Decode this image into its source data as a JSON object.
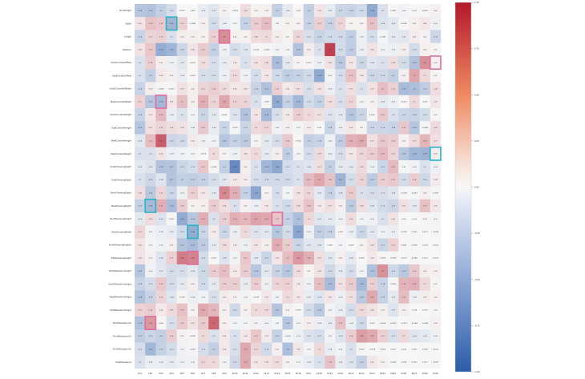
{
  "chart_data": {
    "type": "heatmap",
    "title": "",
    "rows": [
      "ShoeHeight",
      "Width",
      "Length",
      "Rotation",
      "SouthContentOffset",
      "EastContentOffset",
      "SouthContentOffsetX",
      "WestContentOffsetX",
      "SouthContentWeight",
      "EastContentHeight",
      "WestContentHeight",
      "WestContentWeight",
      "SouthShowingDepth",
      "EastShowingDepth",
      "NorthShowingDepth",
      "WestShowingDepth",
      "NorthShowingHeight",
      "WestShowingWidth",
      "SouthShowingDepthX",
      "EastShowingHeight",
      "NorthRetentionHeight",
      "SouthRetentionHeight",
      "WestRetentionHeight",
      "EastRetentionHeight",
      "NorthResistanceX",
      "NorthResistanceY",
      "SouthResistanceX",
      "EastResistance"
    ],
    "columns": [
      "PC1",
      "PC2",
      "PC3",
      "PC4",
      "PC5",
      "PC6",
      "PC7",
      "PC8",
      "PC9",
      "PC10",
      "PC11",
      "PC12",
      "PC13",
      "PC14",
      "PC15",
      "PC16",
      "PC17",
      "PC18",
      "PC19",
      "PC20",
      "PC21",
      "PC22",
      "PC23",
      "PC24",
      "PC25",
      "PC26",
      "PC27",
      "PC28",
      "PC29"
    ],
    "values": [
      [
        -0.26,
        -0.28,
        -0.2,
        -0.12,
        0.0013,
        -0.002,
        -0.044,
        -0.075,
        0.019,
        -0.0003,
        0.085,
        0.012,
        0.018,
        -0.2,
        -0.054,
        0.003,
        -0.2,
        0.051,
        -0.05,
        -0.17,
        -0.18,
        -0.14,
        -0.44,
        -0.1,
        0.0065,
        -0.017,
        -0.007,
        0.0063,
        0.02
      ],
      [
        0.054,
        0.19,
        0.16,
        -0.36,
        0.13,
        -0.0024,
        0.021,
        -0.13,
        -0.039,
        -0.01,
        -0.19,
        0.14,
        0.21,
        -0.01,
        0.018,
        0.016,
        -0.18,
        0.13,
        -0.18,
        0.11,
        0.012,
        0.015,
        0.19,
        -0.084,
        -0.065,
        0.0054,
        0.022,
        0.05,
        -0.03
      ],
      [
        -0.18,
        0.11,
        0.13,
        -0.1,
        0.025,
        0.021,
        0.015,
        0.13,
        0.41,
        0.018,
        0.015,
        0.082,
        0.1,
        0.032,
        0.012,
        0.11,
        -0.11,
        -0.18,
        -0.14,
        -0.14,
        -0.21,
        -0.028,
        -0.12,
        -0.0087,
        -0.061,
        -0.067,
        0.031,
        0.017,
        -0.16
      ],
      [
        0.058,
        0.17,
        -0.42,
        -0.36,
        -0.16,
        0.055,
        0.15,
        -0.19,
        -0.027,
        -0.13,
        -0.08,
        -0.0013,
        -0.0046,
        -0.019,
        -0.013,
        -0.28,
        0.03,
        -0.1,
        0.78,
        -0.13,
        -0.22,
        -0.036,
        0.06,
        -0.022,
        -0.028,
        0.031,
        -0.13,
        0.02,
        0.01
      ],
      [
        -0.1,
        0.14,
        0.023,
        -0.026,
        -0.066,
        0.0029,
        0.076,
        -0.11,
        -0.048,
        0.037,
        -0.1,
        0.062,
        0.083,
        -0.32,
        -0.064,
        0.011,
        0.0072,
        -0.034,
        0.064,
        -0.24,
        0.05,
        -0.16,
        -0.077,
        -0.1,
        0.082,
        -0.13,
        -0.28,
        0.4,
        0.02
      ],
      [
        -0.1,
        -0.2,
        0.04,
        0.019,
        -0.04,
        0.0029,
        -0.11,
        -0.12,
        -0.031,
        0.09,
        -0.026,
        -0.12,
        0.047,
        -0.14,
        -0.21,
        -0.19,
        -0.14,
        -0.44,
        -0.012,
        -0.12,
        0.19,
        0.041,
        -0.16,
        -0.15,
        -0.2,
        0.021,
        0.3,
        0.1,
        0.01
      ],
      [
        -0.18,
        0.025,
        0.0046,
        0.0033,
        0.065,
        0.024,
        0.11,
        0.14,
        0.091,
        0.041,
        0.052,
        -0.18,
        -0.29,
        0.13,
        0.039,
        0.072,
        -0.11,
        0.061,
        -0.034,
        -0.1,
        0.074,
        -0.1,
        0.067,
        0.2,
        0.13,
        -0.33,
        -0.3,
        -0.22,
        0.081
      ],
      [
        0.12,
        -0.26,
        -0.35,
        0.047,
        0.2,
        0.022,
        0.27,
        0.11,
        0.31,
        0.12,
        0.11,
        -0.1,
        -0.009,
        -0.44,
        -0.19,
        -0.35,
        -0.13,
        -0.19,
        0.079,
        -0.11,
        0.11,
        -0.019,
        0.015,
        -0.057,
        -0.029,
        -0.0021,
        0.1,
        -0.003,
        0.05
      ],
      [
        -0.18,
        0.046,
        0.22,
        -0.038,
        -0.097,
        -0.014,
        -0.17,
        -0.064,
        0.00057,
        -0.083,
        -0.28,
        0.055,
        -0.34,
        -0.11,
        0.043,
        0.14,
        0.096,
        0.068,
        -0.087,
        -0.06,
        -0.26,
        -0.17,
        0.0039,
        0.16,
        -0.1,
        -0.17,
        -0.18,
        -0.13,
        0.01
      ],
      [
        -0.26,
        0.072,
        0.11,
        0.077,
        0.062,
        -0.038,
        0.16,
        -0.047,
        -0.17,
        -0.009,
        -0.17,
        0.1,
        0.11,
        -0.022,
        0.027,
        -0.011,
        0.031,
        0.001,
        -0.18,
        -0.034,
        0.047,
        0.012,
        -0.16,
        -0.16,
        -0.18,
        0.16,
        -0.26,
        -0.0085,
        0.09
      ],
      [
        -0.065,
        0.21,
        0.65,
        -0.16,
        -0.14,
        0.039,
        -0.024,
        -0.019,
        -0.26,
        -0.19,
        -0.23,
        0.012,
        -0.06,
        -0.12,
        0.16,
        0.0014,
        -0.2,
        -0.18,
        -0.027,
        -0.21,
        0.26,
        0.29,
        0.066,
        0.16,
        0.14,
        0.016,
        0.086,
        0.24,
        0.07
      ],
      [
        -0.1,
        -0.1,
        0.056,
        -0.031,
        -0.022,
        -0.014,
        0.0015,
        0.096,
        0.012,
        -0.032,
        0.06,
        0.1,
        -0.059,
        0.024,
        -0.21,
        -0.012,
        -0.12,
        0.089,
        -0.039,
        -0.12,
        0.046,
        0.11,
        0.14,
        0.22,
        0.11,
        -0.26,
        -0.36,
        -0.38,
        0.03
      ],
      [
        -0.061,
        -0.086,
        -0.28,
        -0.27,
        -0.17,
        -0.12,
        0.17,
        0.0058,
        -0.2,
        -0.66,
        0.022,
        -0.1,
        -0.36,
        -0.46,
        -0.12,
        -0.098,
        -0.077,
        0.071,
        -0.2,
        -0.061,
        -0.064,
        0.094,
        -0.036,
        -0.17,
        0.22,
        -0.01,
        -0.023,
        -0.098,
        -0.031
      ],
      [
        -0.1,
        -0.16,
        -0.081,
        -0.27,
        -0.2,
        -0.21,
        -0.19,
        -0.12,
        -0.074,
        0.046,
        0.034,
        -0.12,
        -0.14,
        -0.14,
        -0.14,
        -0.1,
        0.22,
        0.3,
        0.18,
        -0.37,
        -0.12,
        0.12,
        -0.23,
        0.14,
        0.16,
        -0.13,
        0.14,
        -0.15,
        0.04
      ],
      [
        0.078,
        -0.24,
        0.11,
        -0.16,
        -0.028,
        0.13,
        0.048,
        -0.06,
        0.44,
        0.26,
        -0.19,
        -0.47,
        0.013,
        -0.12,
        -0.014,
        0.062,
        0.11,
        -0.063,
        -0.18,
        -0.085,
        0.15,
        -0.1,
        -0.12,
        -0.11,
        -0.077,
        -0.0043,
        -0.0061,
        0.024,
        -0.0067
      ],
      [
        -0.19,
        -0.34,
        0.27,
        -0.32,
        0.14,
        0.019,
        0.021,
        0.14,
        0.08,
        -0.1,
        0.016,
        -0.037,
        0.05,
        -0.1,
        -0.14,
        0.082,
        0.18,
        0.039,
        0.072,
        0.023,
        -0.23,
        0.078,
        -0.077,
        -0.13,
        -0.16,
        0.07,
        -0.054,
        0.19,
        0.05
      ],
      [
        -0.061,
        0.087,
        -0.091,
        0.0013,
        -0.43,
        -0.26,
        0.27,
        -0.1,
        0.14,
        0.26,
        0.23,
        0.32,
        0.29,
        0.17,
        -0.19,
        -0.3,
        0.1,
        -0.075,
        -0.061,
        -0.028,
        0.087,
        -0.019,
        -0.024,
        -0.099,
        0.061,
        -0.001,
        -0.001,
        0.009,
        -0.011
      ],
      [
        0.11,
        -0.017,
        -0.036,
        -0.048,
        -0.14,
        -0.42,
        -0.16,
        0.035,
        -0.16,
        -0.04,
        0.1,
        -0.087,
        -0.069,
        -0.26,
        -0.13,
        -0.47,
        -0.03,
        -0.21,
        -0.18,
        0.008,
        -0.039,
        -0.17,
        -0.069,
        -0.025,
        -0.033,
        -0.0055,
        0.0052,
        0.0021,
        0.0044
      ],
      [
        0.056,
        -0.01,
        -0.022,
        0.022,
        -0.27,
        -0.32,
        -0.22,
        -0.053,
        0.078,
        0.035,
        -0.028,
        0.055,
        0.025,
        0.28,
        0.14,
        -0.16,
        -0.067,
        -0.077,
        0.00048,
        -0.015,
        -0.0025,
        0.015,
        0.059,
        -0.17,
        0.12,
        0.0041,
        0.0068,
        -0.0013,
        -0.0013
      ],
      [
        0.057,
        0.014,
        -0.081,
        0.13,
        0.49,
        0.46,
        -0.13,
        0.0021,
        -0.087,
        -0.012,
        0.17,
        -0.063,
        -0.17,
        0.051,
        0.2,
        0.36,
        0.26,
        0.074,
        -0.071,
        0.02,
        -0.062,
        0.0028,
        0.037,
        0.0066,
        -0.0053,
        0.0019,
        -0.0082,
        0.0021,
        -0.0017
      ],
      [
        -0.26,
        -0.021,
        -0.072,
        -0.12,
        -0.11,
        -0.065,
        -0.15,
        0.14,
        0.2,
        0.038,
        0.14,
        -0.25,
        -0.066,
        -0.18,
        -0.25,
        0.082,
        0.01,
        0.055,
        -0.15,
        -0.05,
        -0.12,
        -0.015,
        -0.29,
        0.4,
        -0.15,
        -0.24,
        0.16,
        0.027,
        0.02
      ],
      [
        -0.18,
        -0.12,
        0.16,
        -0.13,
        -0.061,
        0.026,
        -0.14,
        -0.055,
        0.14,
        0.14,
        -0.045,
        0.14,
        -0.03,
        0.11,
        0.13,
        0.039,
        -0.024,
        0.2,
        -0.33,
        0.066,
        0.15,
        -0.34,
        0.13,
        -0.18,
        0.0056,
        0.24,
        0.26,
        0.1,
        0.01
      ],
      [
        -0.28,
        -0.18,
        0.11,
        -0.081,
        0.0087,
        -0.04,
        -0.017,
        -0.11,
        0.034,
        0.018,
        -0.019,
        0.0018,
        0.047,
        -0.02,
        0.098,
        0.048,
        -0.048,
        -0.081,
        0.048,
        -0.029,
        0.071,
        -0.24,
        0.29,
        -0.19,
        -0.055,
        0.21,
        -0.036,
        0.03,
        0.02
      ],
      [
        0.12,
        0.14,
        0.037,
        0.089,
        0.19,
        0.016,
        0.29,
        0.23,
        0.018,
        -0.15,
        0.019,
        0.1,
        0.089,
        -0.27,
        0.013,
        0.00086,
        -0.13,
        -0.24,
        -0.014,
        -0.039,
        -0.13,
        0.09,
        0.062,
        0.021,
        -0.087,
        0.021,
        -0.004,
        0.0003,
        0.01
      ],
      [
        -0.28,
        0.36,
        0.006,
        -0.11,
        0.15,
        0.066,
        0.15,
        0.6,
        0.019,
        -0.014,
        -0.012,
        0.014,
        -0.027,
        -0.011,
        -0.26,
        -0.012,
        0.029,
        -0.035,
        -0.051,
        0.19,
        -0.036,
        -0.15,
        -0.005,
        0.0098,
        -0.0099,
        -0.0014,
        -0.0043,
        -0.0068,
        0.02
      ],
      [
        -0.21,
        -0.16,
        -0.2,
        0.14,
        0.014,
        0.0052,
        0.1,
        -0.1,
        0.041,
        -0.1,
        0.043,
        0.17,
        0.034,
        -0.19,
        -0.0092,
        -0.028,
        -0.094,
        -0.12,
        -0.014,
        -0.087,
        0.14,
        0.34,
        0.29,
        0.13,
        -0.11,
        0.1,
        -0.08,
        -0.06,
        -0.03
      ],
      [
        -0.12,
        -0.35,
        -0.19,
        -0.13,
        -0.021,
        0.0082,
        -0.12,
        -0.2,
        0.042,
        -0.11,
        0.29,
        0.11,
        -0.14,
        0.019,
        -0.3,
        0.045,
        -0.013,
        0.1,
        -0.041,
        -0.019,
        -0.1,
        0.0091,
        -0.0018,
        0.0052,
        0.0022,
        0.0021,
        0.0011,
        0.0043,
        0.0022
      ],
      [
        -0.1,
        -0.038,
        -0.039,
        -0.053,
        -0.026,
        -0.022,
        0.11,
        0.1,
        -0.019,
        -0.15,
        0.29,
        0.049,
        0.062,
        0.088,
        0.016,
        -0.018,
        -0.043,
        -0.1,
        0.18,
        -0.046,
        -0.089,
        -0.19,
        0.049,
        0.019,
        0.0042,
        0.0008,
        0.0029,
        0.0011,
        0.0049
      ]
    ],
    "vmin": -1.0,
    "vmax": 1.0,
    "colormap": "diverging blue-white-red",
    "colorbar_ticks": [
      "1.00",
      "0.75",
      "0.50",
      "0.25",
      "0.00",
      "-0.25",
      "-0.50",
      "-0.75",
      "-1.00"
    ],
    "highlights": [
      {
        "row": 1,
        "col": 3,
        "color": "#2bb5c3"
      },
      {
        "row": 2,
        "col": 8,
        "color": "#e06fa0"
      },
      {
        "row": 4,
        "col": 28,
        "color": "#e06fa0"
      },
      {
        "row": 7,
        "col": 2,
        "color": "#e06fa0"
      },
      {
        "row": 11,
        "col": 28,
        "color": "#2bb5c3"
      },
      {
        "row": 15,
        "col": 1,
        "color": "#2bb5c3"
      },
      {
        "row": 16,
        "col": 13,
        "color": "#e06fa0"
      },
      {
        "row": 17,
        "col": 5,
        "color": "#2bb5c3"
      },
      {
        "row": 19,
        "col": 5,
        "color": "#e06fa0"
      },
      {
        "row": 24,
        "col": 1,
        "color": "#e06fa0"
      }
    ]
  }
}
